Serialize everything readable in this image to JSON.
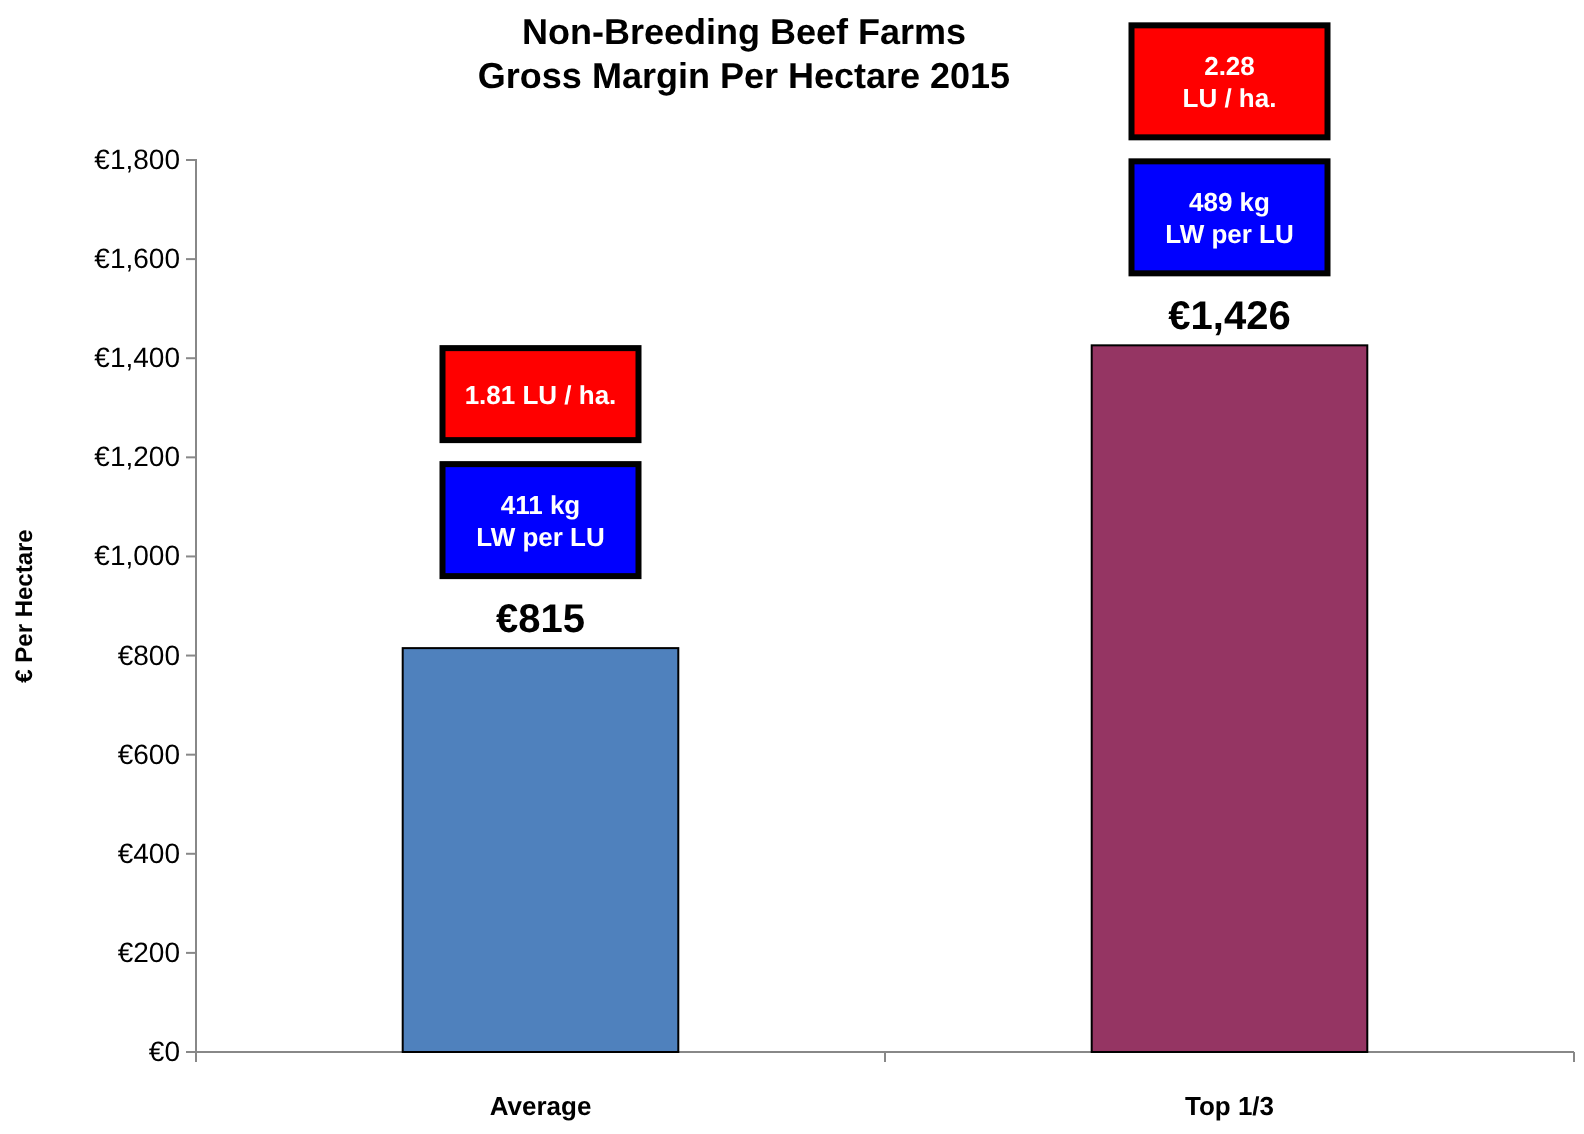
{
  "chart_data": {
    "type": "bar",
    "title": "Non-Breeding Beef Farms\nGross Margin Per Hectare 2015",
    "ylabel": "€ Per Hectare",
    "categories": [
      "Average",
      "Top 1/3"
    ],
    "values": [
      815,
      1426
    ],
    "colors": [
      "#4f81bd",
      "#953563"
    ],
    "value_labels": [
      "€815",
      "€1,426"
    ],
    "ylim": [
      0,
      1800
    ],
    "yticks": [
      {
        "value": 0,
        "label": "€0"
      },
      {
        "value": 200,
        "label": "€200"
      },
      {
        "value": 400,
        "label": "€400"
      },
      {
        "value": 600,
        "label": "€600"
      },
      {
        "value": 800,
        "label": "€800"
      },
      {
        "value": 1000,
        "label": "€1,000"
      },
      {
        "value": 1200,
        "label": "€1,200"
      },
      {
        "value": 1400,
        "label": "€1,400"
      },
      {
        "value": 1600,
        "label": "€1,600"
      },
      {
        "value": 1800,
        "label": "€1,800"
      }
    ],
    "annotations": [
      "1.81 LU / ha.",
      "411 kg\nLW per LU",
      "2.28\nLU / ha.",
      "489 kg\nLW per LU"
    ]
  }
}
